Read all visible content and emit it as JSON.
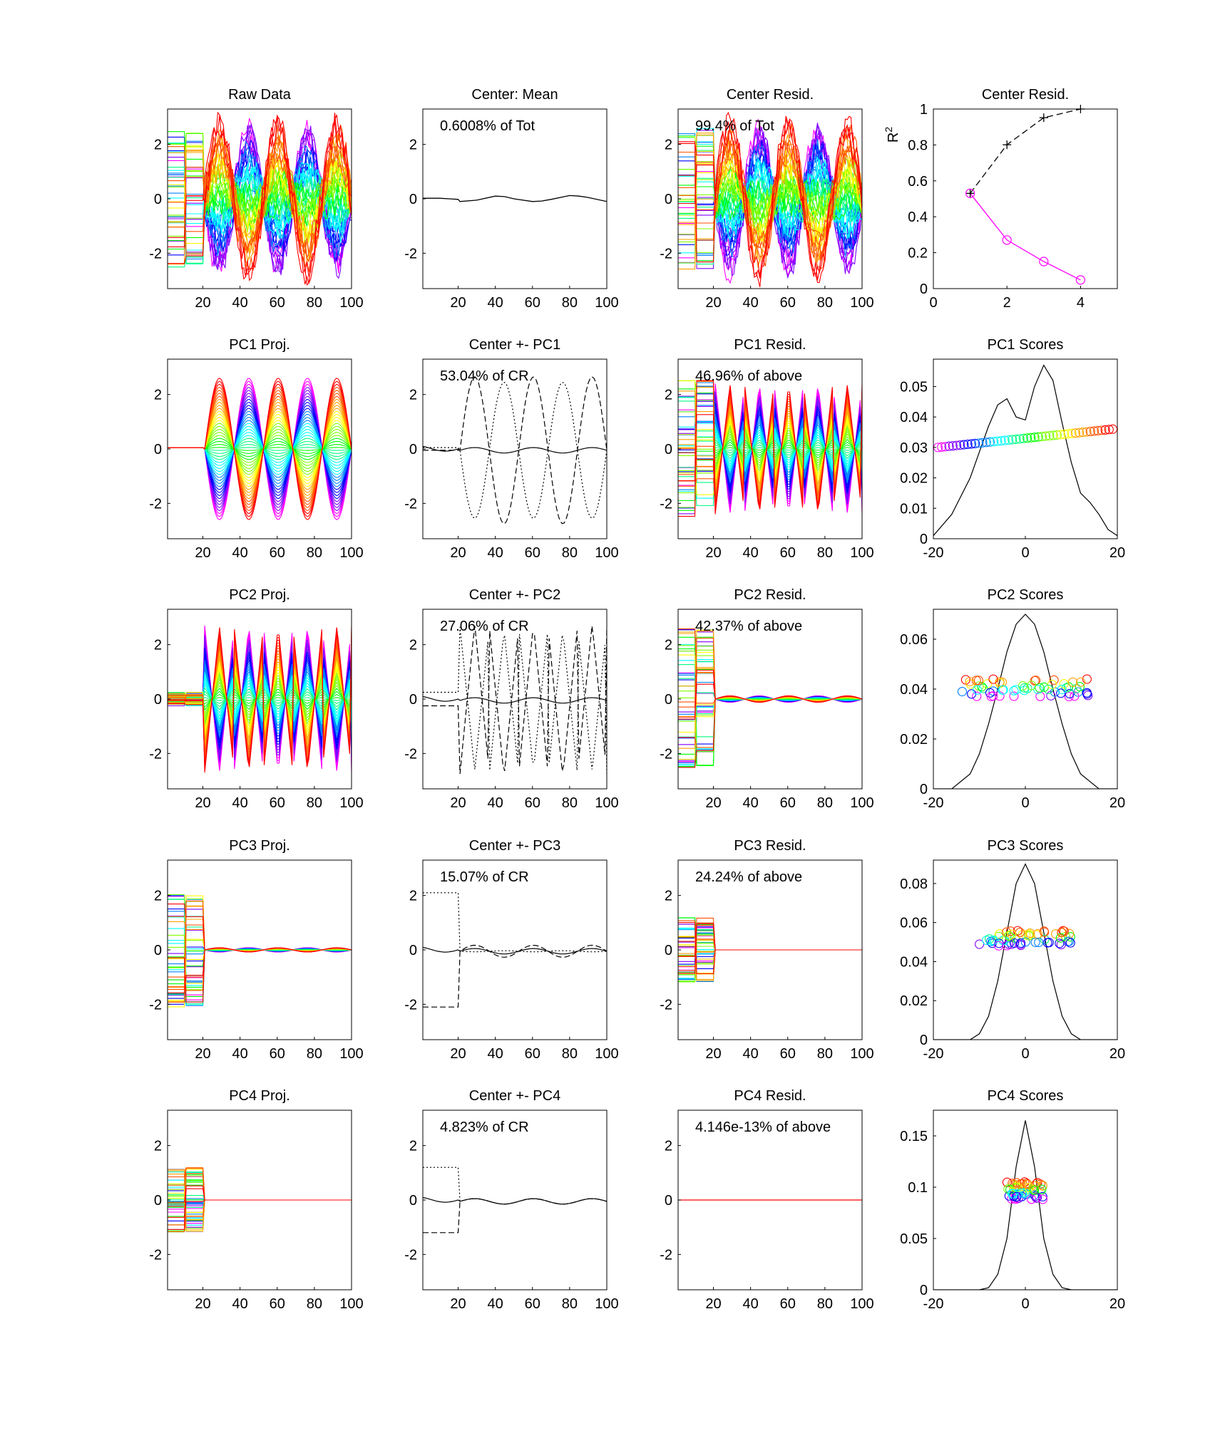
{
  "colors": {
    "rainbow": [
      "#ff00ff",
      "#8000ff",
      "#0000ff",
      "#0080ff",
      "#00ffff",
      "#00ff80",
      "#00ff00",
      "#80ff00",
      "#ffff00",
      "#ffa000",
      "#ff5000",
      "#ff0000"
    ],
    "mean_line": "#000000",
    "r2_cumulative": "#000000",
    "r2_individual": "#ff00ff"
  },
  "chart_data": [
    {
      "id": "raw",
      "type": "line",
      "title": "Raw Data",
      "xticks": [
        "20",
        "40",
        "60",
        "80",
        "100"
      ],
      "yticks": [
        "-2",
        "0",
        "2"
      ],
      "xlim": [
        1,
        100
      ],
      "ylim": [
        -3.3,
        3.3
      ],
      "annotation": "",
      "curve_model": {
        "kind": "family",
        "amplitude": 2.6,
        "cycles": 2.5,
        "block_levels": [
          -2.6,
          2.6
        ],
        "noise": "random"
      }
    },
    {
      "id": "center",
      "type": "line",
      "title": "Center: Mean",
      "xticks": [
        "20",
        "40",
        "60",
        "80",
        "100"
      ],
      "yticks": [
        "-2",
        "0",
        "2"
      ],
      "xlim": [
        1,
        100
      ],
      "ylim": [
        -3.3,
        3.3
      ],
      "annotation": "0.6008% of Tot",
      "series": [
        {
          "style": "solid",
          "x": [
            1,
            10,
            20,
            21,
            30,
            40,
            45,
            50,
            60,
            65,
            70,
            80,
            85,
            90,
            100
          ],
          "y": [
            0.02,
            0.02,
            -0.02,
            -0.1,
            -0.05,
            0.1,
            0.08,
            0.0,
            -0.1,
            -0.08,
            -0.02,
            0.12,
            0.1,
            0.05,
            -0.1
          ]
        }
      ]
    },
    {
      "id": "cresid",
      "type": "line",
      "title": "Center Resid.",
      "xticks": [
        "20",
        "40",
        "60",
        "80",
        "100"
      ],
      "yticks": [
        "-2",
        "0",
        "2"
      ],
      "xlim": [
        1,
        100
      ],
      "ylim": [
        -3.3,
        3.3
      ],
      "annotation": "99.4% of Tot",
      "curve_model": {
        "kind": "family",
        "amplitude": 2.6,
        "cycles": 2.5,
        "block_levels": [
          -2.6,
          2.6
        ],
        "noise": "random"
      }
    },
    {
      "id": "r2",
      "type": "line",
      "title": "Center Resid.",
      "xticks": [
        "0",
        "2",
        "4"
      ],
      "yticks": [
        "0",
        "0.2",
        "0.4",
        "0.6",
        "0.8",
        "1"
      ],
      "xlim": [
        0,
        5
      ],
      "ylim": [
        0,
        1
      ],
      "ylabel": "R",
      "ylabel_sup": "2",
      "annotation": "",
      "series": [
        {
          "style": "dashed",
          "marker": "plus",
          "color_key": "r2_cumulative",
          "x": [
            1,
            2,
            3,
            4
          ],
          "y": [
            0.5304,
            0.801,
            0.9517,
            1.0
          ]
        },
        {
          "style": "solid",
          "marker": "circle",
          "color_key": "r2_individual",
          "x": [
            1,
            2,
            3,
            4
          ],
          "y": [
            0.5304,
            0.2706,
            0.1507,
            0.0482
          ]
        }
      ]
    },
    {
      "id": "pc1p",
      "type": "line",
      "title": "PC1 Proj.",
      "xticks": [
        "20",
        "40",
        "60",
        "80",
        "100"
      ],
      "yticks": [
        "-2",
        "0",
        "2"
      ],
      "xlim": [
        1,
        100
      ],
      "ylim": [
        -3.3,
        3.3
      ],
      "annotation": "",
      "curve_model": {
        "kind": "family",
        "amplitude": 2.6,
        "cycles": 2.5,
        "block_levels": [
          0.05,
          0.05
        ],
        "noise": "none"
      }
    },
    {
      "id": "cpc1",
      "type": "line",
      "title": "Center +- PC1",
      "xticks": [
        "20",
        "40",
        "60",
        "80",
        "100"
      ],
      "yticks": [
        "-2",
        "0",
        "2"
      ],
      "xlim": [
        1,
        100
      ],
      "ylim": [
        -3.3,
        3.3
      ],
      "annotation": "53.04% of CR",
      "curve_model": {
        "kind": "envelope",
        "amplitude": 2.6,
        "cycles": 2.5,
        "block": 0.05
      }
    },
    {
      "id": "pc1r",
      "type": "line",
      "title": "PC1 Resid.",
      "xticks": [
        "20",
        "40",
        "60",
        "80",
        "100"
      ],
      "yticks": [
        "-2",
        "0",
        "2"
      ],
      "xlim": [
        1,
        100
      ],
      "ylim": [
        -3.3,
        3.3
      ],
      "annotation": "46.96% of above",
      "curve_model": {
        "kind": "family",
        "amplitude": 2.4,
        "cycles": 2.5,
        "shape": "abs",
        "block_levels": [
          -2.6,
          2.6
        ],
        "noise": "none"
      }
    },
    {
      "id": "pc1s",
      "type": "scatter",
      "title": "PC1 Scores",
      "xticks": [
        "-20",
        "0",
        "20"
      ],
      "yticks": [
        "0",
        "0.01",
        "0.02",
        "0.03",
        "0.04",
        "0.05"
      ],
      "xlim": [
        -20,
        20
      ],
      "ylim": [
        0,
        0.059
      ],
      "annotation": "",
      "density": {
        "x": [
          -20,
          -16,
          -12,
          -8,
          -6,
          -4,
          -2,
          0,
          2,
          4,
          6,
          8,
          10,
          12,
          14,
          16,
          18,
          20
        ],
        "y": [
          0.001,
          0.008,
          0.02,
          0.037,
          0.044,
          0.046,
          0.04,
          0.039,
          0.05,
          0.057,
          0.052,
          0.038,
          0.025,
          0.015,
          0.012,
          0.008,
          0.003,
          0.001
        ]
      },
      "scores": {
        "x_range": [
          -19,
          19
        ],
        "y_range": [
          0.03,
          0.036
        ],
        "count": 48
      }
    },
    {
      "id": "pc2p",
      "type": "line",
      "title": "PC2 Proj.",
      "xticks": [
        "20",
        "40",
        "60",
        "80",
        "100"
      ],
      "yticks": [
        "-2",
        "0",
        "2"
      ],
      "xlim": [
        1,
        100
      ],
      "ylim": [
        -3.3,
        3.3
      ],
      "annotation": "",
      "curve_model": {
        "kind": "family",
        "amplitude": 2.7,
        "cycles": 2.5,
        "shape": "abs",
        "block_levels": [
          -0.25,
          0.25
        ],
        "noise": "none"
      }
    },
    {
      "id": "cpc2",
      "type": "line",
      "title": "Center +- PC2",
      "xticks": [
        "20",
        "40",
        "60",
        "80",
        "100"
      ],
      "yticks": [
        "-2",
        "0",
        "2"
      ],
      "xlim": [
        1,
        100
      ],
      "ylim": [
        -3.3,
        3.3
      ],
      "annotation": "27.06% of CR",
      "curve_model": {
        "kind": "envelope",
        "amplitude": 2.7,
        "cycles": 2.5,
        "shape": "abs",
        "block": 0.25
      }
    },
    {
      "id": "pc2r",
      "type": "line",
      "title": "PC2 Resid.",
      "xticks": [
        "20",
        "40",
        "60",
        "80",
        "100"
      ],
      "yticks": [
        "-2",
        "0",
        "2"
      ],
      "xlim": [
        1,
        100
      ],
      "ylim": [
        -3.3,
        3.3
      ],
      "annotation": "42.37% of above",
      "curve_model": {
        "kind": "family",
        "amplitude": 0.12,
        "cycles": 2.5,
        "block_levels": [
          -2.6,
          2.6
        ],
        "noise": "none"
      }
    },
    {
      "id": "pc2s",
      "type": "scatter",
      "title": "PC2 Scores",
      "xticks": [
        "-20",
        "0",
        "20"
      ],
      "yticks": [
        "0",
        "0.02",
        "0.04",
        "0.06"
      ],
      "xlim": [
        -20,
        20
      ],
      "ylim": [
        0,
        0.072
      ],
      "annotation": "",
      "density": {
        "x": [
          -20,
          -16,
          -12,
          -10,
          -8,
          -6,
          -4,
          -2,
          0,
          2,
          4,
          6,
          8,
          10,
          12,
          16,
          20
        ],
        "y": [
          0.0,
          0.0,
          0.006,
          0.014,
          0.026,
          0.04,
          0.055,
          0.066,
          0.07,
          0.066,
          0.055,
          0.04,
          0.026,
          0.014,
          0.006,
          0.0,
          0.0
        ]
      },
      "scores": {
        "x_range": [
          -14,
          14
        ],
        "y_range": [
          0.037,
          0.044
        ],
        "count": 60
      }
    },
    {
      "id": "pc3p",
      "type": "line",
      "title": "PC3 Proj.",
      "xticks": [
        "20",
        "40",
        "60",
        "80",
        "100"
      ],
      "yticks": [
        "-2",
        "0",
        "2"
      ],
      "xlim": [
        1,
        100
      ],
      "ylim": [
        -3.3,
        3.3
      ],
      "annotation": "",
      "curve_model": {
        "kind": "family",
        "amplitude": 0.08,
        "cycles": 2.5,
        "block_levels": [
          -2.1,
          2.1
        ],
        "noise": "none"
      }
    },
    {
      "id": "cpc3",
      "type": "line",
      "title": "Center +- PC3",
      "xticks": [
        "20",
        "40",
        "60",
        "80",
        "100"
      ],
      "yticks": [
        "-2",
        "0",
        "2"
      ],
      "xlim": [
        1,
        100
      ],
      "ylim": [
        -3.3,
        3.3
      ],
      "annotation": "15.07% of CR",
      "curve_model": {
        "kind": "envelope",
        "amplitude": 0.12,
        "cycles": 2.5,
        "block": 2.1
      }
    },
    {
      "id": "pc3r",
      "type": "line",
      "title": "PC3 Resid.",
      "xticks": [
        "20",
        "40",
        "60",
        "80",
        "100"
      ],
      "yticks": [
        "-2",
        "0",
        "2"
      ],
      "xlim": [
        1,
        100
      ],
      "ylim": [
        -3.3,
        3.3
      ],
      "annotation": "24.24% of above",
      "curve_model": {
        "kind": "family",
        "amplitude": 0.0,
        "cycles": 2.5,
        "block_levels": [
          -1.2,
          1.2
        ],
        "noise": "none"
      }
    },
    {
      "id": "pc3s",
      "type": "scatter",
      "title": "PC3 Scores",
      "xticks": [
        "-20",
        "0",
        "20"
      ],
      "yticks": [
        "0",
        "0.02",
        "0.04",
        "0.06",
        "0.08"
      ],
      "xlim": [
        -20,
        20
      ],
      "ylim": [
        0,
        0.092
      ],
      "annotation": "",
      "density": {
        "x": [
          -20,
          -12,
          -10,
          -8,
          -6,
          -4,
          -2,
          0,
          2,
          4,
          6,
          8,
          10,
          12,
          20
        ],
        "y": [
          0.0,
          0.0,
          0.003,
          0.012,
          0.03,
          0.055,
          0.08,
          0.09,
          0.08,
          0.055,
          0.03,
          0.012,
          0.003,
          0.0,
          0.0
        ]
      },
      "scores": {
        "x_range": [
          -10,
          10
        ],
        "y_range": [
          0.048,
          0.056
        ],
        "count": 60
      }
    },
    {
      "id": "pc4p",
      "type": "line",
      "title": "PC4 Proj.",
      "xticks": [
        "20",
        "40",
        "60",
        "80",
        "100"
      ],
      "yticks": [
        "-2",
        "0",
        "2"
      ],
      "xlim": [
        1,
        100
      ],
      "ylim": [
        -3.3,
        3.3
      ],
      "annotation": "",
      "curve_model": {
        "kind": "family",
        "amplitude": 0.0,
        "cycles": 2.5,
        "block_levels": [
          -1.2,
          1.2
        ],
        "noise": "none"
      }
    },
    {
      "id": "cpc4",
      "type": "line",
      "title": "Center +- PC4",
      "xticks": [
        "20",
        "40",
        "60",
        "80",
        "100"
      ],
      "yticks": [
        "-2",
        "0",
        "2"
      ],
      "xlim": [
        1,
        100
      ],
      "ylim": [
        -3.3,
        3.3
      ],
      "annotation": "4.823% of CR",
      "curve_model": {
        "kind": "envelope",
        "amplitude": 0.0,
        "cycles": 2.5,
        "block": 1.2
      }
    },
    {
      "id": "pc4r",
      "type": "line",
      "title": "PC4 Resid.",
      "xticks": [
        "20",
        "40",
        "60",
        "80",
        "100"
      ],
      "yticks": [
        "-2",
        "0",
        "2"
      ],
      "xlim": [
        1,
        100
      ],
      "ylim": [
        -3.3,
        3.3
      ],
      "annotation": "4.146e-13% of above",
      "curve_model": {
        "kind": "flat",
        "color": "#ff0000"
      }
    },
    {
      "id": "pc4s",
      "type": "scatter",
      "title": "PC4 Scores",
      "xticks": [
        "-20",
        "0",
        "20"
      ],
      "yticks": [
        "0",
        "0.05",
        "0.1",
        "0.15"
      ],
      "xlim": [
        -20,
        20
      ],
      "ylim": [
        0,
        0.175
      ],
      "annotation": "",
      "density": {
        "x": [
          -20,
          -12,
          -10,
          -8,
          -6,
          -4,
          -2,
          0,
          2,
          4,
          6,
          8,
          10,
          12,
          20
        ],
        "y": [
          0.0,
          0.0,
          0.0,
          0.002,
          0.015,
          0.05,
          0.12,
          0.165,
          0.12,
          0.05,
          0.015,
          0.002,
          0.0,
          0.0,
          0.0
        ]
      },
      "scores": {
        "x_range": [
          -4,
          4
        ],
        "y_range": [
          0.088,
          0.105
        ],
        "count": 60
      }
    }
  ]
}
